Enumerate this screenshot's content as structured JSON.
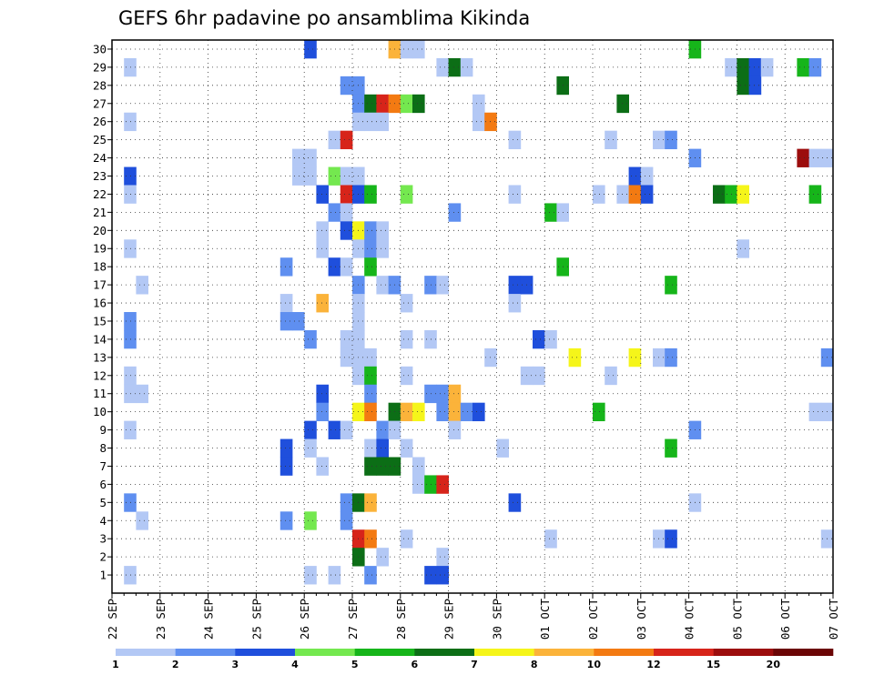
{
  "chart_data": {
    "type": "heatmap",
    "title": "GEFS 6hr padavine po ansamblima Kikinda",
    "xlabel": "",
    "ylabel": "",
    "x_tick_labels": [
      "22 SEP",
      "23 SEP",
      "24 SEP",
      "25 SEP",
      "26 SEP",
      "27 SEP",
      "28 SEP",
      "29 SEP",
      "30 SEP",
      "01 OCT",
      "02 OCT",
      "03 OCT",
      "04 OCT",
      "05 OCT",
      "06 OCT",
      "07 OCT"
    ],
    "x_range_steps": [
      0,
      60
    ],
    "steps_per_day": 4,
    "y_tick_labels": [
      "1",
      "2",
      "3",
      "4",
      "5",
      "6",
      "7",
      "8",
      "9",
      "10",
      "11",
      "12",
      "13",
      "14",
      "15",
      "16",
      "17",
      "18",
      "19",
      "20",
      "21",
      "22",
      "23",
      "24",
      "25",
      "26",
      "27",
      "28",
      "29",
      "30"
    ],
    "y_range": [
      0,
      30
    ],
    "grid": "dotted",
    "legend": {
      "position": "bottom",
      "thresholds": [
        "1",
        "2",
        "3",
        "4",
        "5",
        "6",
        "7",
        "8",
        "10",
        "12",
        "15",
        "20"
      ],
      "colors": [
        "#b3c8f5",
        "#5f8ff0",
        "#1f4fdc",
        "#74e84f",
        "#16b51a",
        "#0c6e16",
        "#f5f51a",
        "#fbb33a",
        "#f37a12",
        "#d7241a",
        "#9c0d0d",
        "#6b0505"
      ]
    },
    "cells": [
      [
        1,
        29,
        0
      ],
      [
        1,
        26,
        0
      ],
      [
        1,
        23,
        2
      ],
      [
        1,
        22,
        0
      ],
      [
        1,
        19,
        0
      ],
      [
        1,
        15,
        1
      ],
      [
        1,
        14,
        1
      ],
      [
        1,
        12,
        0
      ],
      [
        1,
        11,
        0
      ],
      [
        1,
        9,
        0
      ],
      [
        1,
        5,
        1
      ],
      [
        1,
        1,
        0
      ],
      [
        2,
        17,
        0
      ],
      [
        2,
        11,
        0
      ],
      [
        2,
        4,
        0
      ],
      [
        14,
        18,
        1
      ],
      [
        14,
        16,
        0
      ],
      [
        14,
        15,
        1
      ],
      [
        14,
        8,
        2
      ],
      [
        14,
        7,
        2
      ],
      [
        14,
        4,
        1
      ],
      [
        15,
        24,
        0
      ],
      [
        15,
        23,
        0
      ],
      [
        15,
        15,
        1
      ],
      [
        16,
        30,
        2
      ],
      [
        16,
        24,
        0
      ],
      [
        16,
        23,
        0
      ],
      [
        16,
        14,
        1
      ],
      [
        16,
        9,
        2
      ],
      [
        16,
        8,
        0
      ],
      [
        16,
        4,
        3
      ],
      [
        16,
        1,
        0
      ],
      [
        17,
        22,
        2
      ],
      [
        17,
        20,
        0
      ],
      [
        17,
        19,
        0
      ],
      [
        17,
        16,
        7
      ],
      [
        17,
        11,
        2
      ],
      [
        17,
        10,
        1
      ],
      [
        17,
        7,
        0
      ],
      [
        18,
        25,
        0
      ],
      [
        18,
        23,
        3
      ],
      [
        18,
        21,
        1
      ],
      [
        18,
        18,
        2
      ],
      [
        18,
        9,
        2
      ],
      [
        18,
        1,
        0
      ],
      [
        19,
        28,
        1
      ],
      [
        19,
        25,
        9
      ],
      [
        19,
        23,
        0
      ],
      [
        19,
        22,
        9
      ],
      [
        19,
        21,
        0
      ],
      [
        19,
        20,
        2
      ],
      [
        19,
        18,
        0
      ],
      [
        19,
        14,
        0
      ],
      [
        19,
        13,
        0
      ],
      [
        19,
        9,
        0
      ],
      [
        19,
        5,
        1
      ],
      [
        19,
        4,
        1
      ],
      [
        20,
        28,
        1
      ],
      [
        20,
        27,
        1
      ],
      [
        20,
        26,
        0
      ],
      [
        20,
        23,
        0
      ],
      [
        20,
        22,
        2
      ],
      [
        20,
        20,
        6
      ],
      [
        20,
        19,
        0
      ],
      [
        20,
        17,
        1
      ],
      [
        20,
        16,
        0
      ],
      [
        20,
        15,
        0
      ],
      [
        20,
        14,
        0
      ],
      [
        20,
        12,
        0
      ],
      [
        20,
        13,
        0
      ],
      [
        20,
        10,
        6
      ],
      [
        20,
        5,
        5
      ],
      [
        20,
        3,
        9
      ],
      [
        20,
        2,
        5
      ],
      [
        21,
        27,
        5
      ],
      [
        21,
        26,
        0
      ],
      [
        21,
        22,
        4
      ],
      [
        21,
        20,
        1
      ],
      [
        21,
        19,
        1
      ],
      [
        21,
        18,
        4
      ],
      [
        21,
        13,
        0
      ],
      [
        21,
        12,
        4
      ],
      [
        21,
        11,
        1
      ],
      [
        21,
        10,
        8
      ],
      [
        21,
        8,
        0
      ],
      [
        21,
        7,
        5
      ],
      [
        21,
        5,
        7
      ],
      [
        21,
        3,
        8
      ],
      [
        21,
        1,
        1
      ],
      [
        22,
        27,
        9
      ],
      [
        22,
        26,
        0
      ],
      [
        22,
        20,
        0
      ],
      [
        22,
        19,
        0
      ],
      [
        22,
        17,
        0
      ],
      [
        22,
        9,
        1
      ],
      [
        22,
        8,
        2
      ],
      [
        22,
        7,
        5
      ],
      [
        22,
        2,
        0
      ],
      [
        23,
        30,
        7
      ],
      [
        23,
        27,
        8
      ],
      [
        23,
        17,
        1
      ],
      [
        23,
        10,
        5
      ],
      [
        23,
        9,
        0
      ],
      [
        23,
        7,
        5
      ],
      [
        24,
        30,
        0
      ],
      [
        24,
        27,
        3
      ],
      [
        24,
        22,
        3
      ],
      [
        24,
        16,
        0
      ],
      [
        24,
        14,
        0
      ],
      [
        24,
        12,
        0
      ],
      [
        24,
        10,
        7
      ],
      [
        24,
        8,
        0
      ],
      [
        24,
        3,
        0
      ],
      [
        25,
        30,
        0
      ],
      [
        25,
        27,
        5
      ],
      [
        25,
        10,
        6
      ],
      [
        25,
        6,
        0
      ],
      [
        25,
        7,
        0
      ],
      [
        26,
        17,
        1
      ],
      [
        26,
        14,
        0
      ],
      [
        26,
        11,
        1
      ],
      [
        26,
        6,
        4
      ],
      [
        26,
        1,
        2
      ],
      [
        27,
        29,
        0
      ],
      [
        27,
        17,
        0
      ],
      [
        27,
        11,
        1
      ],
      [
        27,
        10,
        1
      ],
      [
        27,
        6,
        9
      ],
      [
        27,
        2,
        0
      ],
      [
        27,
        1,
        2
      ],
      [
        28,
        29,
        5
      ],
      [
        28,
        21,
        1
      ],
      [
        28,
        11,
        7
      ],
      [
        28,
        10,
        7
      ],
      [
        28,
        9,
        0
      ],
      [
        29,
        29,
        0
      ],
      [
        29,
        10,
        1
      ],
      [
        30,
        10,
        2
      ],
      [
        30,
        27,
        0
      ],
      [
        30,
        26,
        0
      ],
      [
        31,
        26,
        8
      ],
      [
        31,
        13,
        0
      ],
      [
        32,
        8,
        0
      ],
      [
        33,
        25,
        0
      ],
      [
        33,
        22,
        0
      ],
      [
        33,
        17,
        2
      ],
      [
        33,
        16,
        0
      ],
      [
        33,
        5,
        2
      ],
      [
        34,
        17,
        2
      ],
      [
        34,
        12,
        0
      ],
      [
        35,
        12,
        0
      ],
      [
        35,
        14,
        2
      ],
      [
        36,
        21,
        4
      ],
      [
        36,
        14,
        0
      ],
      [
        36,
        3,
        0
      ],
      [
        37,
        21,
        0
      ],
      [
        37,
        28,
        5
      ],
      [
        37,
        18,
        4
      ],
      [
        38,
        13,
        6
      ],
      [
        40,
        10,
        4
      ],
      [
        40,
        22,
        0
      ],
      [
        41,
        25,
        0
      ],
      [
        41,
        12,
        0
      ],
      [
        42,
        27,
        5
      ],
      [
        42,
        22,
        0
      ],
      [
        43,
        23,
        2
      ],
      [
        43,
        22,
        8
      ],
      [
        43,
        13,
        6
      ],
      [
        44,
        23,
        0
      ],
      [
        44,
        22,
        2
      ],
      [
        45,
        25,
        0
      ],
      [
        45,
        13,
        0
      ],
      [
        45,
        3,
        0
      ],
      [
        46,
        25,
        1
      ],
      [
        46,
        17,
        4
      ],
      [
        46,
        13,
        1
      ],
      [
        46,
        8,
        4
      ],
      [
        46,
        3,
        2
      ],
      [
        48,
        30,
        4
      ],
      [
        48,
        24,
        1
      ],
      [
        48,
        9,
        1
      ],
      [
        48,
        5,
        0
      ],
      [
        50,
        22,
        5
      ],
      [
        51,
        22,
        4
      ],
      [
        52,
        22,
        6
      ],
      [
        52,
        19,
        0
      ],
      [
        51,
        29,
        0
      ],
      [
        52,
        29,
        5
      ],
      [
        52,
        28,
        5
      ],
      [
        53,
        29,
        2
      ],
      [
        53,
        28,
        2
      ],
      [
        54,
        29,
        0
      ],
      [
        57,
        24,
        10
      ],
      [
        57,
        29,
        4
      ],
      [
        58,
        29,
        1
      ],
      [
        58,
        24,
        0
      ],
      [
        58,
        22,
        4
      ],
      [
        58,
        10,
        0
      ],
      [
        59,
        24,
        0
      ],
      [
        59,
        13,
        1
      ],
      [
        59,
        10,
        0
      ],
      [
        59,
        3,
        0
      ]
    ]
  }
}
